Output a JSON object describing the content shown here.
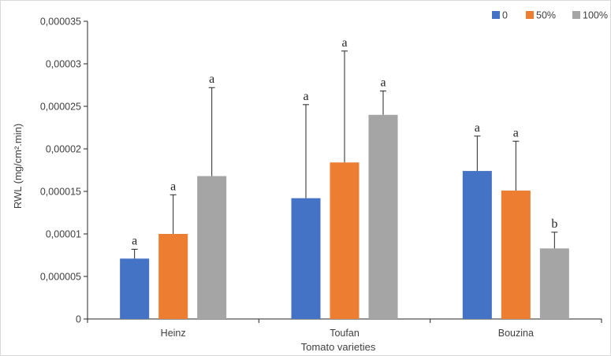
{
  "chart_data": {
    "type": "bar",
    "xlabel": "Tomato varieties",
    "ylabel": "RWL (mg/cm².min)",
    "ylim": [
      0,
      3.5e-05
    ],
    "yticks": [
      "0",
      "0,000005",
      "0,00001",
      "0,000015",
      "0,00002",
      "0,000025",
      "0,00003",
      "0,000035"
    ],
    "categories": [
      "Heinz",
      "Toufan",
      "Bouzina"
    ],
    "legend_position": "top-right",
    "grid": false,
    "series": [
      {
        "name": "0",
        "color": "#4472C4",
        "values": [
          7.1e-06,
          1.42e-05,
          1.74e-05
        ],
        "errors": [
          1.1e-06,
          1.1e-05,
          4.1e-06
        ],
        "letters": [
          "a",
          "a",
          "a"
        ]
      },
      {
        "name": "50%",
        "color": "#ED7D31",
        "values": [
          1e-05,
          1.84e-05,
          1.51e-05
        ],
        "errors": [
          4.6e-06,
          1.31e-05,
          5.8e-06
        ],
        "letters": [
          "a",
          "a",
          "a"
        ]
      },
      {
        "name": "100%",
        "color": "#A5A5A5",
        "values": [
          1.68e-05,
          2.4e-05,
          8.3e-06
        ],
        "errors": [
          1.04e-05,
          2.8e-06,
          1.9e-06
        ],
        "letters": [
          "a",
          "a",
          "b"
        ]
      }
    ]
  }
}
